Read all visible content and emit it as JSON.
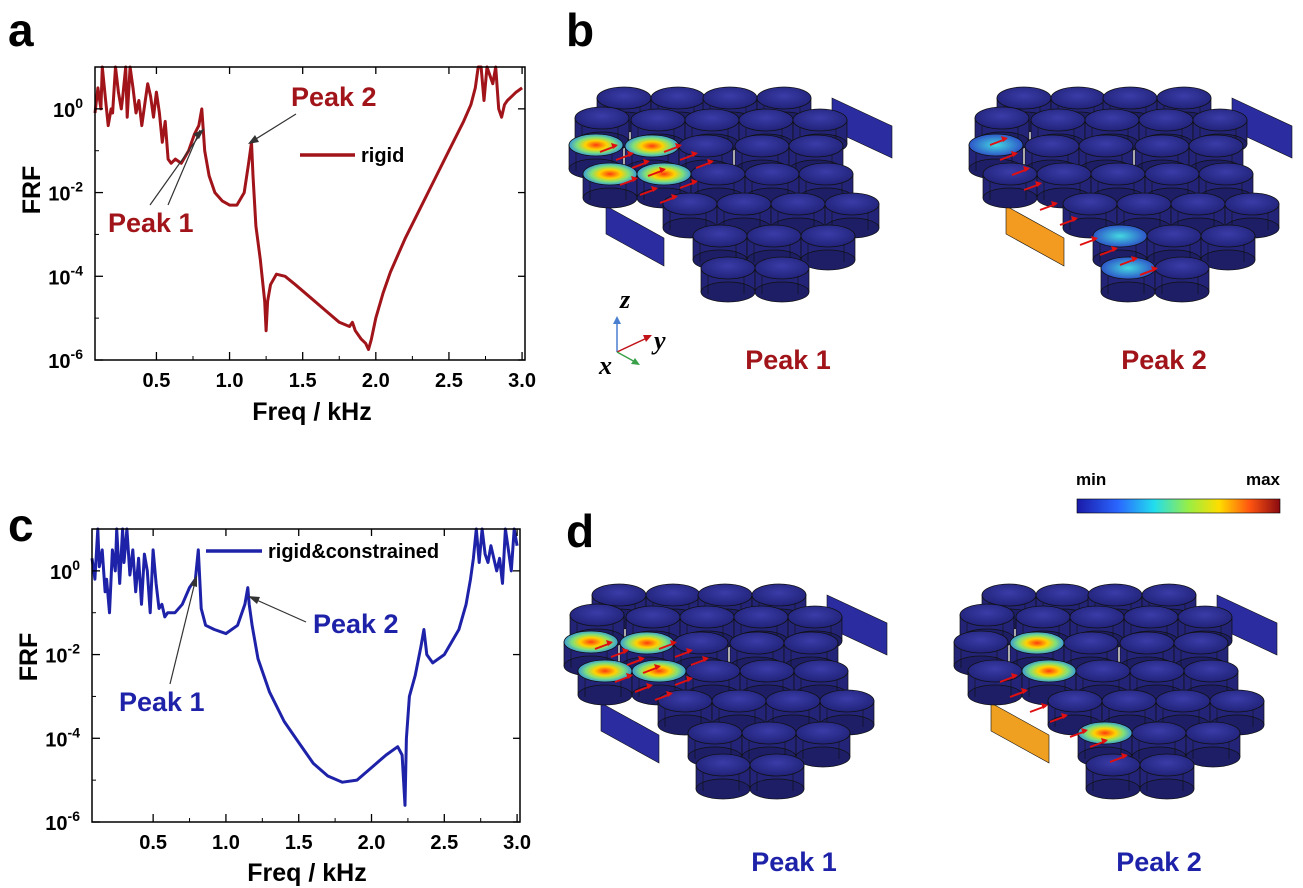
{
  "colors": {
    "rigid": "#a0141a",
    "constrained": "#1e22a8",
    "arrow_field": "#e01010"
  },
  "panel_labels": [
    "a",
    "b",
    "c",
    "d"
  ],
  "chart_data": [
    {
      "type": "line",
      "panel": "a",
      "xlabel": "Freq / kHz",
      "ylabel": "FRF",
      "xlim": [
        0.08,
        3.02
      ],
      "ylim_log10": [
        -6,
        1
      ],
      "xticks": [
        "0.5",
        "1.0",
        "1.5",
        "2.0",
        "2.5",
        "3.0"
      ],
      "xtick_values": [
        0.5,
        1.0,
        1.5,
        2.0,
        2.5,
        3.0
      ],
      "yticks": [
        {
          "base": "10",
          "exp": "0"
        },
        {
          "base": "10",
          "exp": "-2"
        },
        {
          "base": "10",
          "exp": "-4"
        },
        {
          "base": "10",
          "exp": "-6"
        }
      ],
      "ytick_values": [
        0,
        -2,
        -4,
        -6
      ],
      "legend": "rigid",
      "annotations": [
        "Peak 1",
        "Peak 2"
      ],
      "series": [
        {
          "name": "rigid",
          "x": [
            0.08,
            0.1,
            0.12,
            0.13,
            0.15,
            0.17,
            0.19,
            0.2,
            0.22,
            0.24,
            0.26,
            0.27,
            0.29,
            0.3,
            0.32,
            0.34,
            0.36,
            0.38,
            0.4,
            0.42,
            0.44,
            0.46,
            0.48,
            0.5,
            0.52,
            0.54,
            0.56,
            0.58,
            0.6,
            0.63,
            0.67,
            0.72,
            0.76,
            0.79,
            0.81,
            0.83,
            0.86,
            0.9,
            0.95,
            1.0,
            1.05,
            1.1,
            1.13,
            1.15,
            1.16,
            1.18,
            1.21,
            1.24,
            1.25,
            1.26,
            1.28,
            1.32,
            1.38,
            1.45,
            1.55,
            1.65,
            1.75,
            1.82,
            1.84,
            1.86,
            1.9,
            1.93,
            1.95,
            1.97,
            2.0,
            2.05,
            2.1,
            2.2,
            2.3,
            2.4,
            2.5,
            2.6,
            2.65,
            2.68,
            2.7,
            2.72,
            2.74,
            2.76,
            2.78,
            2.8,
            2.82,
            2.84,
            2.86,
            2.88,
            2.9,
            2.93,
            2.96,
            3.0
          ],
          "log10y": [
            -0.1,
            0.5,
            0.0,
            1.0,
            0.3,
            -0.4,
            0.0,
            -0.1,
            1.0,
            0.4,
            0.0,
            0.3,
            1.0,
            -0.2,
            1.0,
            0.5,
            -0.1,
            0.2,
            -0.4,
            0.1,
            0.6,
            0.3,
            -0.2,
            0.4,
            -0.1,
            -0.8,
            -0.3,
            -1.2,
            -1.3,
            -1.2,
            -1.3,
            -1.0,
            -0.6,
            -0.4,
            0.0,
            -1.0,
            -1.6,
            -2.0,
            -2.2,
            -2.3,
            -2.3,
            -2.0,
            -1.3,
            -0.8,
            -1.6,
            -2.8,
            -3.6,
            -4.6,
            -5.3,
            -4.6,
            -4.2,
            -3.95,
            -4.0,
            -4.2,
            -4.5,
            -4.8,
            -5.1,
            -5.2,
            -5.1,
            -5.3,
            -5.5,
            -5.6,
            -5.75,
            -5.5,
            -5.0,
            -4.4,
            -3.9,
            -3.1,
            -2.4,
            -1.7,
            -1.0,
            -0.3,
            0.1,
            0.5,
            1.0,
            1.0,
            0.2,
            1.0,
            0.8,
            0.6,
            1.0,
            0.0,
            -0.2,
            0.1,
            0.2,
            0.3,
            0.4,
            0.5
          ]
        }
      ]
    },
    {
      "type": "line",
      "panel": "c",
      "xlabel": "Freq / kHz",
      "ylabel": "FRF",
      "xlim": [
        0.08,
        3.02
      ],
      "ylim_log10": [
        -6,
        1
      ],
      "xticks": [
        "0.5",
        "1.0",
        "1.5",
        "2.0",
        "2.5",
        "3.0"
      ],
      "xtick_values": [
        0.5,
        1.0,
        1.5,
        2.0,
        2.5,
        3.0
      ],
      "yticks": [
        {
          "base": "10",
          "exp": "0"
        },
        {
          "base": "10",
          "exp": "-2"
        },
        {
          "base": "10",
          "exp": "-4"
        },
        {
          "base": "10",
          "exp": "-6"
        }
      ],
      "ytick_values": [
        0,
        -2,
        -4,
        -6
      ],
      "legend": "rigid&constrained",
      "annotations": [
        "Peak 1",
        "Peak 2"
      ],
      "series": [
        {
          "name": "rigid&constrained",
          "x": [
            0.08,
            0.1,
            0.12,
            0.13,
            0.15,
            0.17,
            0.18,
            0.2,
            0.22,
            0.24,
            0.25,
            0.27,
            0.29,
            0.3,
            0.32,
            0.34,
            0.36,
            0.38,
            0.4,
            0.42,
            0.44,
            0.46,
            0.48,
            0.5,
            0.52,
            0.54,
            0.56,
            0.58,
            0.6,
            0.65,
            0.7,
            0.75,
            0.79,
            0.81,
            0.83,
            0.86,
            0.92,
            1.0,
            1.08,
            1.13,
            1.15,
            1.16,
            1.18,
            1.22,
            1.3,
            1.4,
            1.5,
            1.6,
            1.7,
            1.8,
            1.9,
            2.0,
            2.1,
            2.18,
            2.21,
            2.23,
            2.24,
            2.26,
            2.3,
            2.34,
            2.36,
            2.38,
            2.42,
            2.5,
            2.6,
            2.65,
            2.68,
            2.7,
            2.72,
            2.74,
            2.76,
            2.78,
            2.8,
            2.82,
            2.84,
            2.86,
            2.88,
            2.9,
            2.92,
            2.94,
            2.96,
            2.98,
            3.0
          ],
          "log10y": [
            0.3,
            -0.2,
            1.0,
            0.1,
            0.5,
            -0.5,
            -0.2,
            -1.0,
            0.5,
            0.0,
            1.0,
            -0.3,
            1.0,
            0.2,
            1.0,
            -0.1,
            0.5,
            -0.5,
            0.3,
            -0.8,
            0.4,
            0.0,
            -1.0,
            0.5,
            -0.3,
            -0.9,
            -0.8,
            -1.1,
            -1.0,
            -1.0,
            -0.8,
            -0.4,
            -0.2,
            0.5,
            -0.9,
            -1.3,
            -1.4,
            -1.5,
            -1.3,
            -0.8,
            -0.4,
            -0.8,
            -1.3,
            -2.1,
            -2.9,
            -3.6,
            -4.1,
            -4.6,
            -4.9,
            -5.05,
            -5.0,
            -4.7,
            -4.4,
            -4.2,
            -4.4,
            -5.6,
            -4.0,
            -3.0,
            -2.5,
            -1.8,
            -1.4,
            -2.0,
            -2.2,
            -2.0,
            -1.4,
            -0.8,
            -0.2,
            0.3,
            1.0,
            0.2,
            1.0,
            0.4,
            0.2,
            0.6,
            0.3,
            0.0,
            0.3,
            -0.3,
            1.0,
            0.5,
            0.0,
            1.0,
            0.6
          ]
        }
      ]
    }
  ],
  "panel_b": {
    "captions": [
      "Peak 1",
      "Peak 2"
    ],
    "axes": {
      "z": "z",
      "y": "y",
      "x": "x"
    }
  },
  "panel_d": {
    "captions": [
      "Peak 1",
      "Peak 2"
    ]
  },
  "colorbar": {
    "min_label": "min",
    "max_label": "max"
  }
}
